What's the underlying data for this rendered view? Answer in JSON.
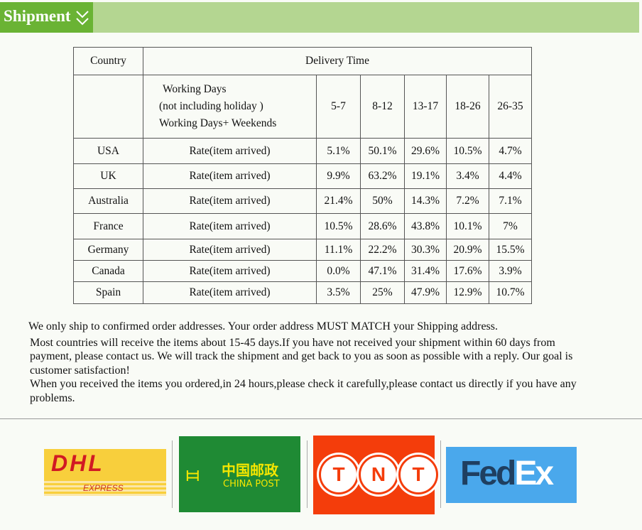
{
  "header": {
    "title": "Shipment",
    "accent": "#6ab334",
    "bar": "#b4d691"
  },
  "table": {
    "country_header": "Country",
    "delivery_header": "Delivery Time",
    "sub_lines": [
      "Working Days",
      "(not including holiday )",
      "Working Days+ Weekends"
    ],
    "ranges": [
      "5-7",
      "8-12",
      "13-17",
      "18-26",
      "26-35"
    ],
    "rows": [
      {
        "country": "USA",
        "label": "Rate(item arrived)",
        "values": [
          "5.1%",
          "50.1%",
          "29.6%",
          "10.5%",
          "4.7%"
        ]
      },
      {
        "country": "UK",
        "label": "Rate(item arrived)",
        "values": [
          "9.9%",
          "63.2%",
          "19.1%",
          "3.4%",
          "4.4%"
        ]
      },
      {
        "country": "Australia",
        "label": "Rate(item arrived)",
        "values": [
          "21.4%",
          "50%",
          "14.3%",
          "7.2%",
          "7.1%"
        ]
      },
      {
        "country": "France",
        "label": "Rate(item arrived)",
        "values": [
          "10.5%",
          "28.6%",
          "43.8%",
          "10.1%",
          "7%"
        ]
      },
      {
        "country": "Germany",
        "label": "Rate(item arrived)",
        "values": [
          "11.1%",
          "22.2%",
          "30.3%",
          "20.9%",
          "15.5%"
        ]
      },
      {
        "country": "Canada",
        "label": "Rate(item arrived)",
        "values": [
          "0.0%",
          "47.1%",
          "31.4%",
          "17.6%",
          "3.9%"
        ]
      },
      {
        "country": "Spain",
        "label": "Rate(item arrived)",
        "values": [
          "3.5%",
          "25%",
          "47.9%",
          "12.9%",
          "10.7%"
        ]
      }
    ]
  },
  "notes": [
    "We only ship to confirmed order addresses. Your order address MUST MATCH your Shipping address.",
    "Most countries will receive the items about 15-45 days.If you have not received your shipment within 60 days from payment, please contact us. We will track the shipment and get back to you as soon as possible with a reply. Our goal is customer satisfaction!",
    "When you received the items you ordered,in 24 hours,please check it carefully,please contact us directly if you have any problems."
  ],
  "logos": {
    "dhl": "DHL",
    "dhl_sub": "EXPRESS",
    "chinapost_cn": "中国邮政",
    "chinapost": "CHINA POST",
    "tnt": [
      "T",
      "N",
      "T"
    ],
    "fedex_a": "Fed",
    "fedex_b": "Ex"
  }
}
